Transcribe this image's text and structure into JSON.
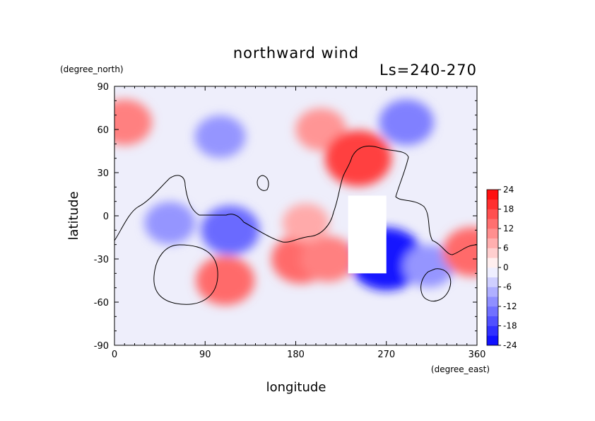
{
  "chart_data": {
    "type": "heatmap",
    "title": "northward wind",
    "subtitle": "Ls=240-270",
    "xlabel": "longitude",
    "ylabel": "latitude",
    "x_unit": "(degree_east)",
    "y_unit": "(degree_north)",
    "xlim": [
      0,
      360
    ],
    "ylim": [
      -90,
      90
    ],
    "x_ticks": [
      0,
      90,
      180,
      270,
      360
    ],
    "y_ticks": [
      90,
      60,
      30,
      0,
      -30,
      -60,
      -90
    ],
    "colorbar": {
      "levels": [
        -24,
        -21,
        -18,
        -15,
        -12,
        -9,
        -6,
        -3,
        0,
        3,
        6,
        9,
        12,
        15,
        18,
        21,
        24
      ],
      "labels": [
        "24",
        "18",
        "12",
        "6",
        "0",
        "-6",
        "-12",
        "-18",
        "-24"
      ],
      "min_color": "#0000ff",
      "mid_color": "#ffffff",
      "max_color": "#ff0000"
    },
    "features": [
      {
        "lon": 10,
        "lat": 65,
        "value": 12
      },
      {
        "lon": 105,
        "lat": 55,
        "value": -10
      },
      {
        "lon": 205,
        "lat": 60,
        "value": 10
      },
      {
        "lon": 242,
        "lat": 40,
        "value": 18
      },
      {
        "lon": 290,
        "lat": 65,
        "value": -12
      },
      {
        "lon": 115,
        "lat": -10,
        "value": -14
      },
      {
        "lon": 55,
        "lat": -5,
        "value": -10
      },
      {
        "lon": 270,
        "lat": -30,
        "value": -22
      },
      {
        "lon": 312,
        "lat": -35,
        "value": -10
      },
      {
        "lon": 110,
        "lat": -45,
        "value": 14
      },
      {
        "lon": 185,
        "lat": -30,
        "value": 14
      },
      {
        "lon": 212,
        "lat": -30,
        "value": 12
      },
      {
        "lon": 355,
        "lat": -25,
        "value": 14
      },
      {
        "lon": 190,
        "lat": -5,
        "value": 8
      }
    ],
    "missing_region": {
      "lon": [
        232,
        270
      ],
      "lat": [
        -40,
        14
      ]
    }
  }
}
